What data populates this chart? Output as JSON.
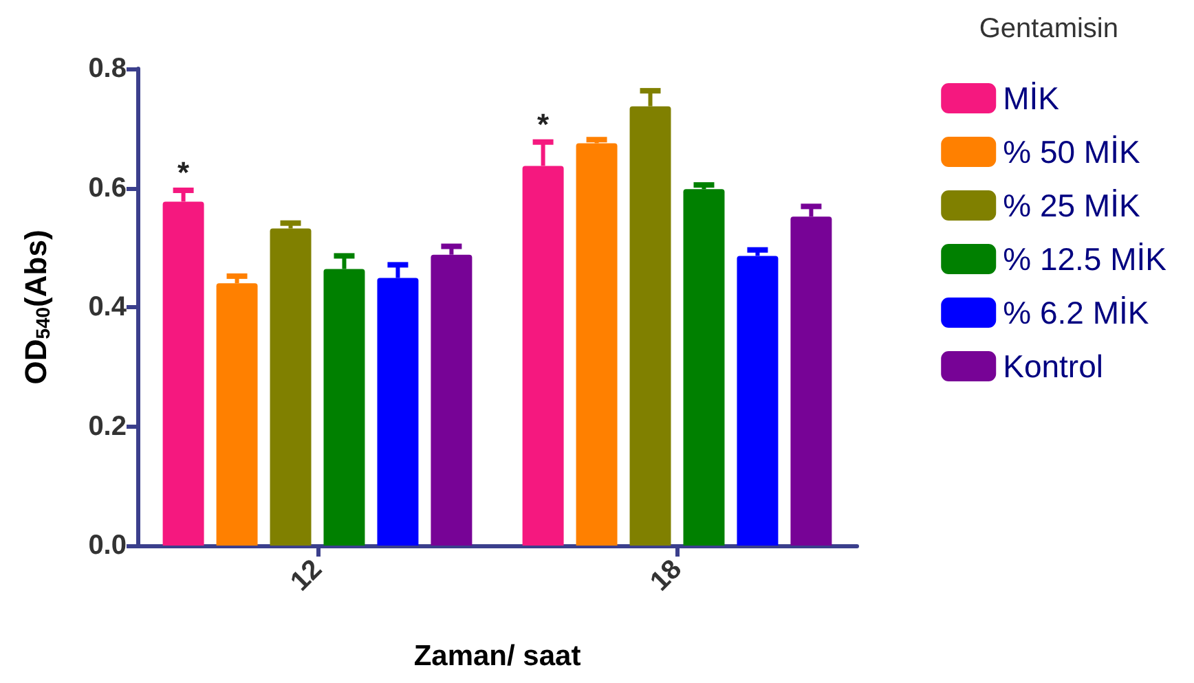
{
  "chart_data": {
    "type": "bar",
    "xlabel": "Zaman/ saat",
    "ylabel": "OD$_{540}$(Abs)",
    "legend_title": "Gentamisin",
    "categories": [
      "12",
      "18"
    ],
    "series": [
      {
        "name": "MİK",
        "color": "#f5187f",
        "values": [
          0.577,
          0.637
        ],
        "errors": [
          [
            0.577,
            0.596
          ],
          [
            0.637,
            0.677
          ]
        ],
        "value_labels": [
          "*",
          "*"
        ]
      },
      {
        "name": "% 50 MİK",
        "color": "#ff8000",
        "values": [
          0.44,
          0.675
        ],
        "errors": [
          [
            0.44,
            0.452
          ],
          [
            0.675,
            0.681
          ]
        ]
      },
      {
        "name": "% 25 MİK",
        "color": "#808000",
        "values": [
          0.532,
          0.737
        ],
        "errors": [
          [
            0.532,
            0.541
          ],
          [
            0.737,
            0.763
          ]
        ]
      },
      {
        "name": "% 12.5 MİK",
        "color": "#008000",
        "values": [
          0.464,
          0.598
        ],
        "errors": [
          [
            0.464,
            0.486
          ],
          [
            0.598,
            0.605
          ]
        ]
      },
      {
        "name": "% 6.2 MİK",
        "color": "#0000ff",
        "values": [
          0.449,
          0.486
        ],
        "errors": [
          [
            0.449,
            0.471
          ],
          [
            0.486,
            0.496
          ]
        ]
      },
      {
        "name": "Kontrol",
        "color": "#770396",
        "values": [
          0.488,
          0.552
        ],
        "errors": [
          [
            0.488,
            0.502
          ],
          [
            0.552,
            0.569
          ]
        ]
      }
    ],
    "ylim": [
      0,
      0.8
    ],
    "yticks": [
      {
        "value": 0,
        "label": "0.0"
      },
      0.2,
      0.4,
      0.6,
      0.8
    ],
    "legend": "right",
    "grid": false
  }
}
